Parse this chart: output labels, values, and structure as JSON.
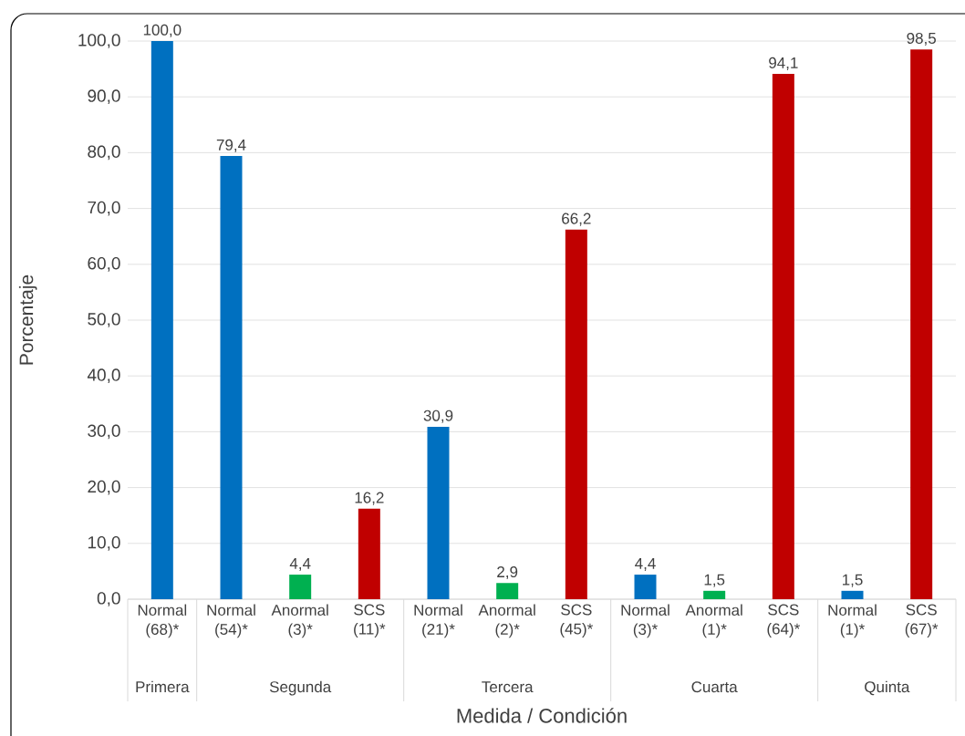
{
  "chart_data": {
    "type": "bar",
    "xlabel": "Medida / Condición",
    "ylabel": "Porcentaje",
    "categories": [
      "Normal (68)*",
      "Normal (54)*",
      "Anormal (3)*",
      "SCS (11)*",
      "Normal (21)*",
      "Anormal (2)*",
      "SCS (45)*",
      "Normal (3)*",
      "Anormal (1)*",
      "SCS (64)*",
      "Normal (1)*",
      "SCS (67)*"
    ],
    "values": [
      100,
      79.4,
      4.4,
      16.2,
      30.9,
      2.9,
      66.2,
      4.4,
      1.5,
      94.1,
      1.5,
      98.5
    ],
    "value_labels": [
      "100,0",
      "79,4",
      "4,4",
      "16,2",
      "30,9",
      "2,9",
      "66,2",
      "4,4",
      "1,5",
      "94,1",
      "1,5",
      "98,5"
    ],
    "colors": [
      "#0070c0",
      "#0070c0",
      "#00b050",
      "#c00000",
      "#0070c0",
      "#00b050",
      "#c00000",
      "#0070c0",
      "#00b050",
      "#c00000",
      "#0070c0",
      "#c00000"
    ],
    "annotations": [
      "Primera",
      "Segunda",
      "Tercera",
      "Cuarta",
      "Quinta"
    ],
    "ylim": [
      0,
      100
    ],
    "yticks": [
      {
        "value": 0,
        "label": "0,0"
      },
      {
        "value": 10,
        "label": "10,0"
      },
      {
        "value": 20,
        "label": "20,0"
      },
      {
        "value": 30,
        "label": "30,0"
      },
      {
        "value": 40,
        "label": "40,0"
      },
      {
        "value": 50,
        "label": "50,0"
      },
      {
        "value": 60,
        "label": "60,0"
      },
      {
        "value": 70,
        "label": "70,0"
      },
      {
        "value": 80,
        "label": "80,0"
      },
      {
        "value": 90,
        "label": "90,0"
      },
      {
        "value": 100,
        "label": "100,0"
      }
    ],
    "grid": "y"
  }
}
